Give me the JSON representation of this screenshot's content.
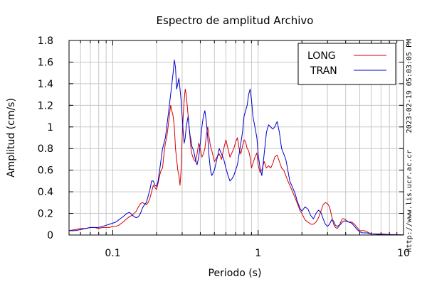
{
  "chart_data": {
    "type": "line",
    "title": "Espectro de amplitud Archivo",
    "xlabel": "Periodo (s)",
    "ylabel": "Amplitud (cm/s)",
    "xscale": "log",
    "xlim": [
      0.05,
      10
    ],
    "ylim": [
      0,
      1.8
    ],
    "grid": true,
    "legend_position": "top-right",
    "x_ticks": [
      {
        "value": 0.1,
        "label": "0.1"
      },
      {
        "value": 1,
        "label": "1"
      },
      {
        "value": 10,
        "label": "10"
      }
    ],
    "y_ticks": [
      {
        "value": 0,
        "label": "0"
      },
      {
        "value": 0.2,
        "label": "0.2"
      },
      {
        "value": 0.4,
        "label": "0.4"
      },
      {
        "value": 0.6,
        "label": "0.6"
      },
      {
        "value": 0.8,
        "label": "0.8"
      },
      {
        "value": 1,
        "label": "1"
      },
      {
        "value": 1.2,
        "label": "1.2"
      },
      {
        "value": 1.4,
        "label": "1.4"
      },
      {
        "value": 1.6,
        "label": "1.6"
      },
      {
        "value": 1.8,
        "label": "1.8"
      }
    ],
    "series": [
      {
        "name": "LONG",
        "color": "#d40000",
        "points": [
          [
            0.05,
            0.04
          ],
          [
            0.055,
            0.05
          ],
          [
            0.06,
            0.06
          ],
          [
            0.065,
            0.06
          ],
          [
            0.07,
            0.07
          ],
          [
            0.075,
            0.07
          ],
          [
            0.08,
            0.06
          ],
          [
            0.085,
            0.07
          ],
          [
            0.09,
            0.07
          ],
          [
            0.095,
            0.07
          ],
          [
            0.1,
            0.08
          ],
          [
            0.105,
            0.08
          ],
          [
            0.11,
            0.09
          ],
          [
            0.115,
            0.11
          ],
          [
            0.12,
            0.13
          ],
          [
            0.125,
            0.15
          ],
          [
            0.13,
            0.17
          ],
          [
            0.135,
            0.18
          ],
          [
            0.14,
            0.2
          ],
          [
            0.145,
            0.22
          ],
          [
            0.15,
            0.26
          ],
          [
            0.155,
            0.29
          ],
          [
            0.16,
            0.3
          ],
          [
            0.165,
            0.29
          ],
          [
            0.17,
            0.28
          ],
          [
            0.175,
            0.3
          ],
          [
            0.18,
            0.34
          ],
          [
            0.185,
            0.4
          ],
          [
            0.19,
            0.46
          ],
          [
            0.195,
            0.44
          ],
          [
            0.2,
            0.42
          ],
          [
            0.205,
            0.48
          ],
          [
            0.21,
            0.55
          ],
          [
            0.215,
            0.6
          ],
          [
            0.22,
            0.62
          ],
          [
            0.225,
            0.75
          ],
          [
            0.23,
            0.85
          ],
          [
            0.235,
            0.9
          ],
          [
            0.24,
            1.0
          ],
          [
            0.245,
            1.1
          ],
          [
            0.25,
            1.2
          ],
          [
            0.255,
            1.15
          ],
          [
            0.26,
            1.1
          ],
          [
            0.265,
            1.0
          ],
          [
            0.27,
            0.8
          ],
          [
            0.275,
            0.7
          ],
          [
            0.28,
            0.6
          ],
          [
            0.285,
            0.55
          ],
          [
            0.29,
            0.46
          ],
          [
            0.295,
            0.6
          ],
          [
            0.3,
            0.9
          ],
          [
            0.305,
            1.1
          ],
          [
            0.31,
            1.25
          ],
          [
            0.315,
            1.35
          ],
          [
            0.32,
            1.3
          ],
          [
            0.325,
            1.2
          ],
          [
            0.33,
            1.1
          ],
          [
            0.335,
            1.0
          ],
          [
            0.34,
            0.9
          ],
          [
            0.345,
            0.8
          ],
          [
            0.35,
            0.75
          ],
          [
            0.36,
            0.7
          ],
          [
            0.37,
            0.68
          ],
          [
            0.38,
            0.75
          ],
          [
            0.39,
            0.85
          ],
          [
            0.4,
            0.8
          ],
          [
            0.41,
            0.72
          ],
          [
            0.42,
            0.75
          ],
          [
            0.43,
            0.8
          ],
          [
            0.44,
            0.92
          ],
          [
            0.45,
            1.0
          ],
          [
            0.46,
            0.9
          ],
          [
            0.47,
            0.82
          ],
          [
            0.48,
            0.78
          ],
          [
            0.5,
            0.68
          ],
          [
            0.52,
            0.72
          ],
          [
            0.54,
            0.75
          ],
          [
            0.56,
            0.7
          ],
          [
            0.58,
            0.8
          ],
          [
            0.6,
            0.88
          ],
          [
            0.62,
            0.8
          ],
          [
            0.64,
            0.72
          ],
          [
            0.66,
            0.76
          ],
          [
            0.68,
            0.8
          ],
          [
            0.7,
            0.86
          ],
          [
            0.72,
            0.9
          ],
          [
            0.74,
            0.8
          ],
          [
            0.76,
            0.75
          ],
          [
            0.78,
            0.82
          ],
          [
            0.8,
            0.88
          ],
          [
            0.82,
            0.86
          ],
          [
            0.84,
            0.8
          ],
          [
            0.86,
            0.78
          ],
          [
            0.88,
            0.72
          ],
          [
            0.9,
            0.62
          ],
          [
            0.92,
            0.66
          ],
          [
            0.95,
            0.72
          ],
          [
            0.98,
            0.76
          ],
          [
            1.0,
            0.65
          ],
          [
            1.03,
            0.58
          ],
          [
            1.06,
            0.6
          ],
          [
            1.1,
            0.68
          ],
          [
            1.14,
            0.62
          ],
          [
            1.18,
            0.64
          ],
          [
            1.22,
            0.62
          ],
          [
            1.26,
            0.66
          ],
          [
            1.3,
            0.72
          ],
          [
            1.35,
            0.74
          ],
          [
            1.4,
            0.68
          ],
          [
            1.45,
            0.62
          ],
          [
            1.5,
            0.6
          ],
          [
            1.55,
            0.55
          ],
          [
            1.6,
            0.5
          ],
          [
            1.65,
            0.46
          ],
          [
            1.7,
            0.42
          ],
          [
            1.75,
            0.38
          ],
          [
            1.8,
            0.34
          ],
          [
            1.85,
            0.3
          ],
          [
            1.9,
            0.26
          ],
          [
            1.95,
            0.22
          ],
          [
            2.0,
            0.2
          ],
          [
            2.1,
            0.14
          ],
          [
            2.2,
            0.12
          ],
          [
            2.3,
            0.1
          ],
          [
            2.4,
            0.1
          ],
          [
            2.5,
            0.12
          ],
          [
            2.6,
            0.16
          ],
          [
            2.7,
            0.22
          ],
          [
            2.8,
            0.28
          ],
          [
            2.9,
            0.3
          ],
          [
            3.0,
            0.29
          ],
          [
            3.1,
            0.26
          ],
          [
            3.2,
            0.18
          ],
          [
            3.3,
            0.1
          ],
          [
            3.4,
            0.07
          ],
          [
            3.5,
            0.06
          ],
          [
            3.6,
            0.08
          ],
          [
            3.7,
            0.12
          ],
          [
            3.8,
            0.15
          ],
          [
            3.9,
            0.15
          ],
          [
            4.0,
            0.14
          ],
          [
            4.2,
            0.12
          ],
          [
            4.4,
            0.12
          ],
          [
            4.6,
            0.1
          ],
          [
            4.8,
            0.07
          ],
          [
            5.0,
            0.04
          ],
          [
            5.2,
            0.04
          ],
          [
            5.4,
            0.04
          ],
          [
            5.6,
            0.03
          ],
          [
            6.0,
            0.01
          ],
          [
            7.0,
            0.01
          ],
          [
            8.0,
            0.005
          ],
          [
            9.0,
            0.003
          ],
          [
            10.0,
            0.002
          ]
        ]
      },
      {
        "name": "TRAN",
        "color": "#0000c8",
        "points": [
          [
            0.05,
            0.04
          ],
          [
            0.055,
            0.04
          ],
          [
            0.06,
            0.05
          ],
          [
            0.065,
            0.06
          ],
          [
            0.07,
            0.07
          ],
          [
            0.075,
            0.07
          ],
          [
            0.08,
            0.07
          ],
          [
            0.085,
            0.08
          ],
          [
            0.09,
            0.09
          ],
          [
            0.095,
            0.1
          ],
          [
            0.1,
            0.11
          ],
          [
            0.105,
            0.12
          ],
          [
            0.11,
            0.14
          ],
          [
            0.115,
            0.16
          ],
          [
            0.12,
            0.18
          ],
          [
            0.125,
            0.2
          ],
          [
            0.13,
            0.21
          ],
          [
            0.135,
            0.19
          ],
          [
            0.14,
            0.17
          ],
          [
            0.145,
            0.16
          ],
          [
            0.15,
            0.17
          ],
          [
            0.155,
            0.2
          ],
          [
            0.16,
            0.25
          ],
          [
            0.165,
            0.28
          ],
          [
            0.17,
            0.3
          ],
          [
            0.175,
            0.36
          ],
          [
            0.18,
            0.42
          ],
          [
            0.185,
            0.5
          ],
          [
            0.19,
            0.5
          ],
          [
            0.195,
            0.46
          ],
          [
            0.2,
            0.45
          ],
          [
            0.205,
            0.5
          ],
          [
            0.21,
            0.6
          ],
          [
            0.215,
            0.7
          ],
          [
            0.22,
            0.8
          ],
          [
            0.225,
            0.85
          ],
          [
            0.23,
            0.9
          ],
          [
            0.235,
            1.0
          ],
          [
            0.24,
            1.1
          ],
          [
            0.245,
            1.2
          ],
          [
            0.25,
            1.3
          ],
          [
            0.255,
            1.4
          ],
          [
            0.26,
            1.5
          ],
          [
            0.265,
            1.62
          ],
          [
            0.27,
            1.55
          ],
          [
            0.275,
            1.35
          ],
          [
            0.28,
            1.4
          ],
          [
            0.285,
            1.45
          ],
          [
            0.29,
            1.35
          ],
          [
            0.295,
            1.25
          ],
          [
            0.3,
            1.1
          ],
          [
            0.305,
            0.95
          ],
          [
            0.31,
            0.85
          ],
          [
            0.315,
            0.9
          ],
          [
            0.32,
            1.0
          ],
          [
            0.325,
            1.05
          ],
          [
            0.33,
            1.1
          ],
          [
            0.335,
            1.0
          ],
          [
            0.34,
            0.92
          ],
          [
            0.345,
            0.88
          ],
          [
            0.35,
            0.82
          ],
          [
            0.36,
            0.78
          ],
          [
            0.37,
            0.7
          ],
          [
            0.38,
            0.65
          ],
          [
            0.39,
            0.72
          ],
          [
            0.4,
            0.85
          ],
          [
            0.41,
            1.0
          ],
          [
            0.42,
            1.1
          ],
          [
            0.43,
            1.15
          ],
          [
            0.44,
            1.05
          ],
          [
            0.45,
            0.9
          ],
          [
            0.46,
            0.72
          ],
          [
            0.47,
            0.6
          ],
          [
            0.48,
            0.55
          ],
          [
            0.5,
            0.6
          ],
          [
            0.52,
            0.7
          ],
          [
            0.54,
            0.8
          ],
          [
            0.56,
            0.75
          ],
          [
            0.58,
            0.7
          ],
          [
            0.6,
            0.62
          ],
          [
            0.62,
            0.55
          ],
          [
            0.64,
            0.5
          ],
          [
            0.66,
            0.52
          ],
          [
            0.68,
            0.55
          ],
          [
            0.7,
            0.6
          ],
          [
            0.72,
            0.65
          ],
          [
            0.74,
            0.75
          ],
          [
            0.76,
            0.85
          ],
          [
            0.78,
            0.95
          ],
          [
            0.8,
            1.1
          ],
          [
            0.82,
            1.15
          ],
          [
            0.84,
            1.2
          ],
          [
            0.86,
            1.3
          ],
          [
            0.88,
            1.35
          ],
          [
            0.9,
            1.25
          ],
          [
            0.92,
            1.1
          ],
          [
            0.95,
            1.0
          ],
          [
            0.98,
            0.9
          ],
          [
            1.0,
            0.75
          ],
          [
            1.03,
            0.62
          ],
          [
            1.06,
            0.55
          ],
          [
            1.1,
            0.75
          ],
          [
            1.14,
            0.95
          ],
          [
            1.18,
            1.02
          ],
          [
            1.22,
            1.0
          ],
          [
            1.26,
            0.98
          ],
          [
            1.3,
            1.0
          ],
          [
            1.35,
            1.05
          ],
          [
            1.4,
            0.95
          ],
          [
            1.45,
            0.8
          ],
          [
            1.5,
            0.75
          ],
          [
            1.55,
            0.7
          ],
          [
            1.6,
            0.6
          ],
          [
            1.65,
            0.5
          ],
          [
            1.7,
            0.46
          ],
          [
            1.75,
            0.42
          ],
          [
            1.8,
            0.38
          ],
          [
            1.85,
            0.32
          ],
          [
            1.9,
            0.28
          ],
          [
            1.95,
            0.24
          ],
          [
            2.0,
            0.22
          ],
          [
            2.1,
            0.26
          ],
          [
            2.2,
            0.24
          ],
          [
            2.3,
            0.18
          ],
          [
            2.4,
            0.15
          ],
          [
            2.5,
            0.2
          ],
          [
            2.6,
            0.23
          ],
          [
            2.7,
            0.21
          ],
          [
            2.8,
            0.15
          ],
          [
            2.9,
            0.1
          ],
          [
            3.0,
            0.08
          ],
          [
            3.1,
            0.1
          ],
          [
            3.2,
            0.14
          ],
          [
            3.3,
            0.13
          ],
          [
            3.4,
            0.09
          ],
          [
            3.5,
            0.08
          ],
          [
            3.6,
            0.09
          ],
          [
            3.7,
            0.1
          ],
          [
            3.8,
            0.12
          ],
          [
            3.9,
            0.13
          ],
          [
            4.0,
            0.13
          ],
          [
            4.2,
            0.12
          ],
          [
            4.4,
            0.11
          ],
          [
            4.6,
            0.08
          ],
          [
            4.8,
            0.05
          ],
          [
            5.0,
            0.03
          ],
          [
            5.2,
            0.02
          ],
          [
            5.4,
            0.02
          ],
          [
            5.6,
            0.02
          ],
          [
            6.0,
            0.01
          ],
          [
            7.0,
            0.005
          ],
          [
            8.0,
            0.003
          ],
          [
            9.0,
            0.002
          ],
          [
            10.0,
            0.001
          ]
        ]
      }
    ]
  },
  "side": {
    "timestamp": "2023-02-19 05:03:05 PM",
    "url": "http://www.lis.ucr.ac.cr"
  }
}
